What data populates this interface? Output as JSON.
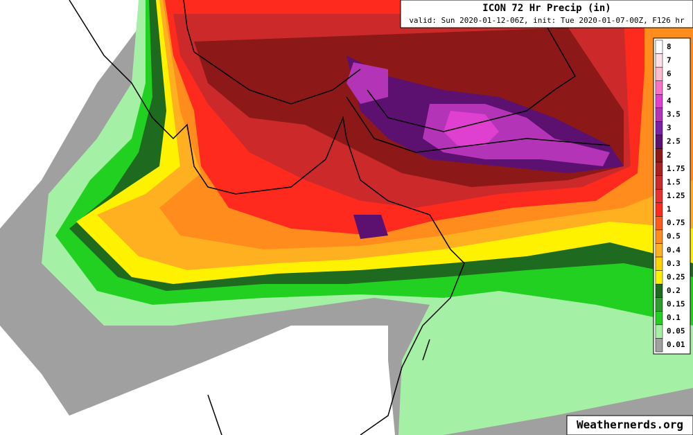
{
  "header": {
    "title": "ICON 72 Hr Precip (in)",
    "subtitle": "valid: Sun 2020-01-12-06Z, init: Tue 2020-01-07-00Z, F126 hr"
  },
  "legend": {
    "items": [
      {
        "label": "8",
        "color": "#fdfdfd"
      },
      {
        "label": "7",
        "color": "#ffe0e8"
      },
      {
        "label": "6",
        "color": "#ffbcd0"
      },
      {
        "label": "5",
        "color": "#f870c8"
      },
      {
        "label": "4",
        "color": "#e040d0"
      },
      {
        "label": "3.5",
        "color": "#b434b8"
      },
      {
        "label": "3",
        "color": "#7c20a8"
      },
      {
        "label": "2.5",
        "color": "#5c1070"
      },
      {
        "label": "2",
        "color": "#8c1818"
      },
      {
        "label": "1.75",
        "color": "#aa2020"
      },
      {
        "label": "1.5",
        "color": "#cc2a2a"
      },
      {
        "label": "1.25",
        "color": "#e83030"
      },
      {
        "label": "1",
        "color": "#ff2a1e"
      },
      {
        "label": "0.75",
        "color": "#ff5c1c"
      },
      {
        "label": "0.5",
        "color": "#ff8c1c"
      },
      {
        "label": "0.4",
        "color": "#ffb020"
      },
      {
        "label": "0.3",
        "color": "#ffd400"
      },
      {
        "label": "0.25",
        "color": "#fff200"
      },
      {
        "label": "0.2",
        "color": "#1e6a1e"
      },
      {
        "label": "0.15",
        "color": "#2c9c2c"
      },
      {
        "label": "0.1",
        "color": "#22d022"
      },
      {
        "label": "0.05",
        "color": "#a4f0a4"
      },
      {
        "label": "0.01",
        "color": "#a0a0a0"
      }
    ]
  },
  "watermark": "Weathernerds.org"
}
